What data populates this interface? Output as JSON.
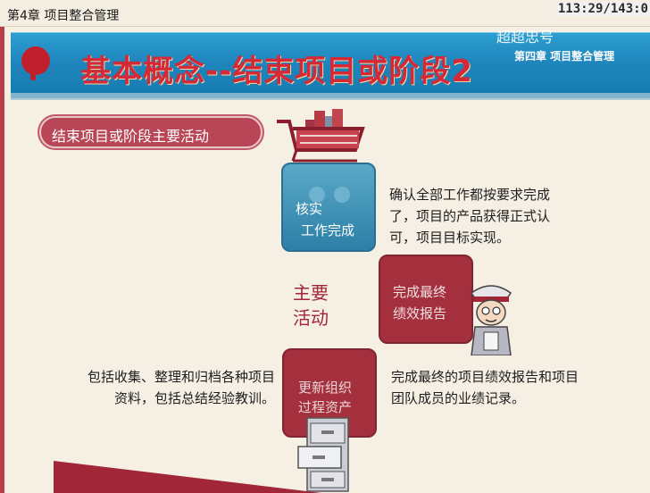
{
  "header": {
    "chapter": "第4章 项目整合管理",
    "counter": "113:29/143:0"
  },
  "banner": {
    "title": "基本概念--结束项目或阶段2",
    "subtitle": "第四章 项目整合管理",
    "overlay_text": "超超忠号"
  },
  "section": {
    "pill_label": "结束项目或阶段主要活动",
    "main_label_line1": "主要",
    "main_label_line2": "活动"
  },
  "cards": {
    "verify": {
      "line1": "核实",
      "line2": "工作完成"
    },
    "report": {
      "line1": "完成最终",
      "line2": "绩效报告"
    },
    "archive": {
      "line1": "更新组织",
      "line2": "过程资产"
    }
  },
  "descriptions": {
    "verify": "确认全部工作都按要求完成了，项目的产品获得正式认可，项目目标实现。",
    "report": "完成最终的项目绩效报告和项目团队成员的业绩记录。",
    "archive": "包括收集、整理和归档各种项目资料，包括总结经验教训。"
  },
  "icons": {
    "cart": "shopping-cart-icon",
    "detective": "detective-icon",
    "cabinet": "file-cabinet-icon",
    "logo": "pin-logo-icon"
  },
  "colors": {
    "banner_blue": "#1f86bd",
    "title_red": "#d42a38",
    "card_red": "#a4303d",
    "card_blue": "#2d7fa7",
    "page_bg": "#f6efe4"
  }
}
